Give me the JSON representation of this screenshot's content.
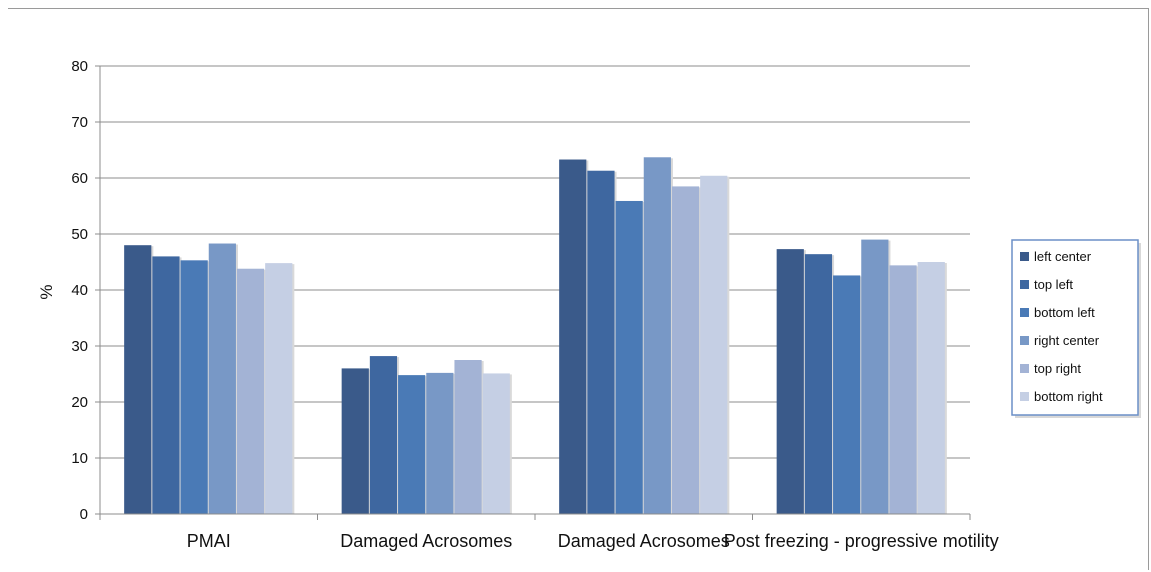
{
  "chart_data": {
    "type": "bar",
    "title": "",
    "xlabel": "",
    "ylabel": "%",
    "ylim": [
      0,
      80
    ],
    "yticks": [
      0,
      10,
      20,
      30,
      40,
      50,
      60,
      70,
      80
    ],
    "grid": "horizontal",
    "legend_position": "right",
    "categories": [
      "PMAI",
      "Damaged Acrosomes",
      "Damaged Acrosomes",
      "Post freezing - progressive motility"
    ],
    "series": [
      {
        "name": "left center",
        "color": "#3a5a8a",
        "values": [
          48,
          26,
          63.3,
          47.3
        ]
      },
      {
        "name": "top left",
        "color": "#3e67a0",
        "values": [
          46,
          28.2,
          61.3,
          46.4
        ]
      },
      {
        "name": "bottom left",
        "color": "#4a7ab6",
        "values": [
          45.3,
          24.8,
          55.9,
          42.6
        ]
      },
      {
        "name": "right center",
        "color": "#7898c6",
        "values": [
          48.3,
          25.2,
          63.7,
          49
        ]
      },
      {
        "name": "top right",
        "color": "#a3b3d5",
        "values": [
          43.8,
          27.5,
          58.5,
          44.4
        ]
      },
      {
        "name": "bottom right",
        "color": "#c5cfe4",
        "values": [
          44.8,
          25.1,
          60.4,
          45
        ]
      }
    ]
  }
}
